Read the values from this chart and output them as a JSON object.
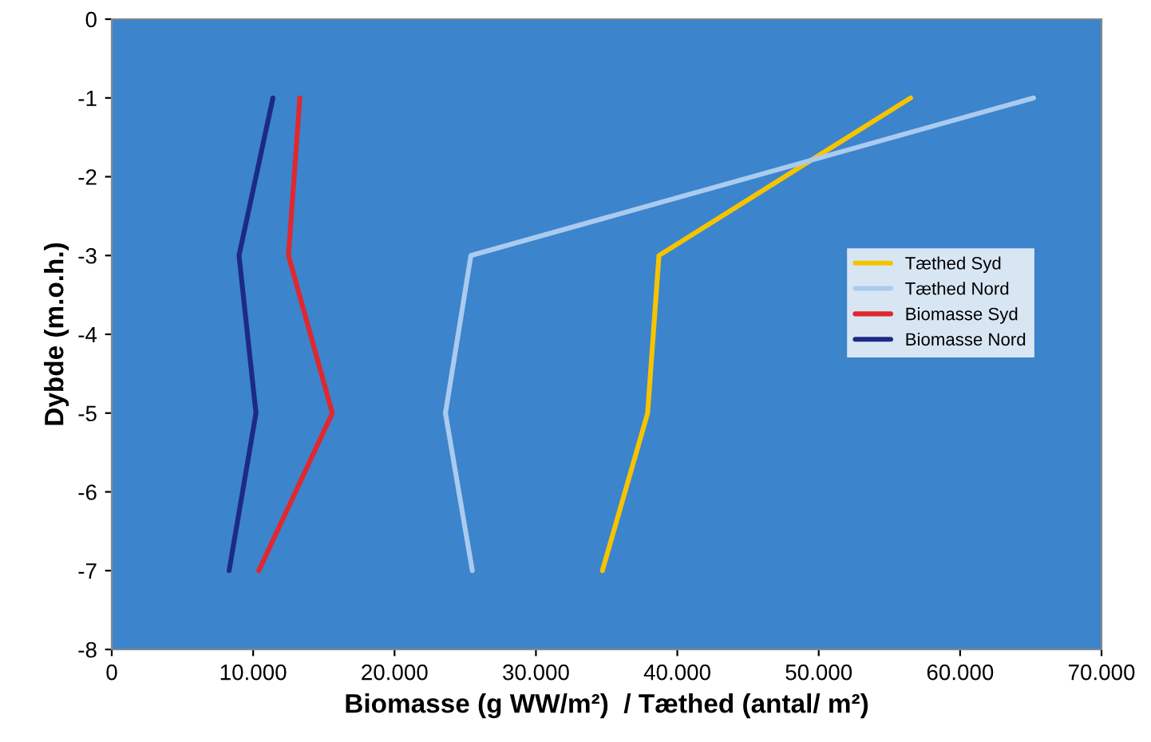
{
  "chart_data": {
    "type": "line",
    "xlabel": "Biomasse (g WW/m²)  / Tæthed (antal/ m²)",
    "ylabel": "Dybde (m.o.h.)",
    "xlim": [
      0,
      70000
    ],
    "xticks": [
      0,
      {
        "value": 10000,
        "label": "10.000"
      },
      {
        "value": 20000,
        "label": "20.000"
      },
      {
        "value": 30000,
        "label": "30.000"
      },
      {
        "value": 40000,
        "label": "40.000"
      },
      {
        "value": 50000,
        "label": "50.000"
      },
      {
        "value": 60000,
        "label": "60.000"
      },
      {
        "value": 70000,
        "label": "70.000"
      }
    ],
    "ylim": [
      -8,
      0
    ],
    "yticks": [
      -8,
      -7,
      -6,
      -5,
      -4,
      -3,
      -2,
      -1,
      0
    ],
    "grid": false,
    "legend": "right",
    "marker": "none",
    "line_style": "solid",
    "series": [
      {
        "name": "Tæthed Syd",
        "color": "#f5c400",
        "x": [
          56500,
          38700,
          37900,
          34700
        ],
        "values": [
          -1,
          -3,
          -5,
          -7
        ]
      },
      {
        "name": "Tæthed Nord",
        "color": "#a9cbef",
        "x": [
          65200,
          25400,
          23600,
          25500
        ],
        "values": [
          -1,
          -3,
          -5,
          -7
        ]
      },
      {
        "name": "Biomasse Syd",
        "color": "#e0282e",
        "x": [
          13300,
          12500,
          15600,
          10400
        ],
        "values": [
          -1,
          -3,
          -5,
          -7
        ]
      },
      {
        "name": "Biomasse Nord",
        "color": "#1c2a86",
        "x": [
          11400,
          9000,
          10200,
          8300
        ],
        "values": [
          -1,
          -3,
          -5,
          -7
        ]
      }
    ]
  }
}
